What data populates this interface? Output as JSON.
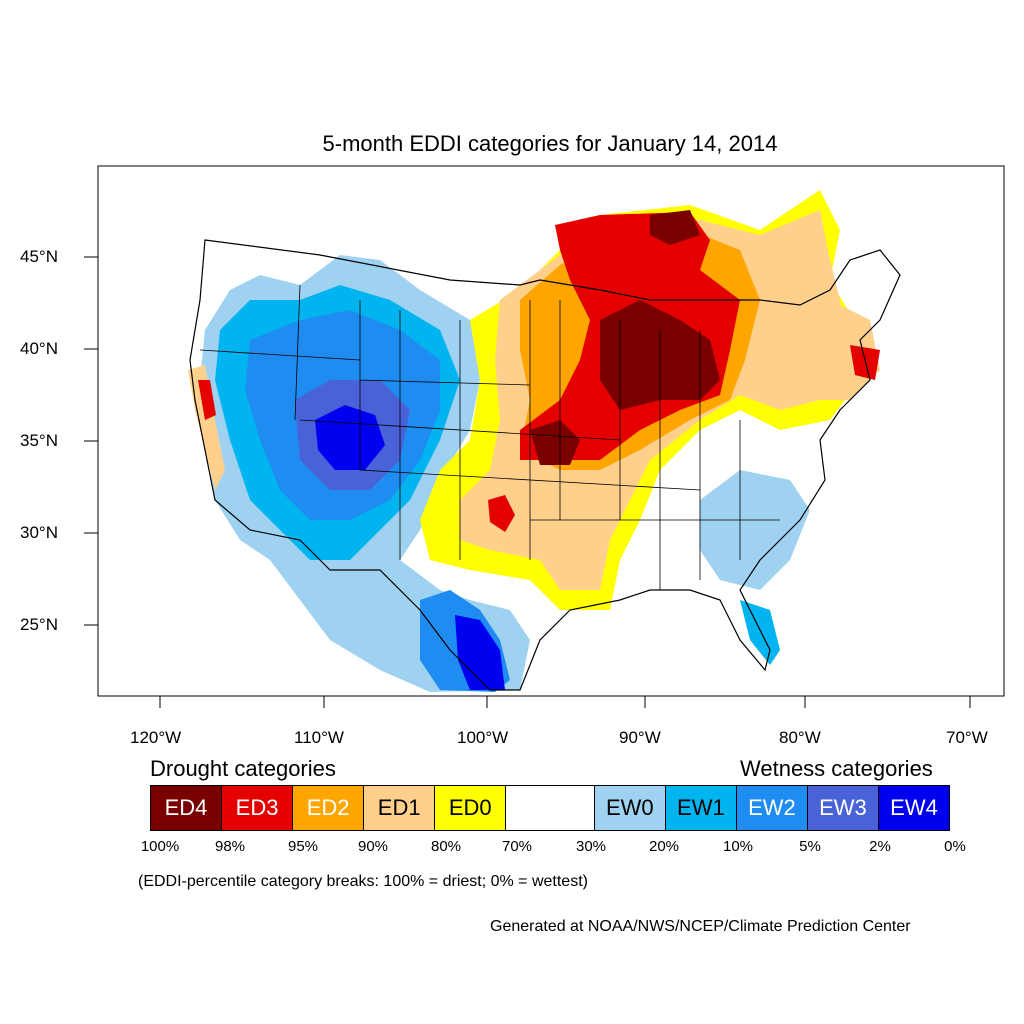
{
  "title": "5-month EDDI categories for January 14, 2014",
  "latitude_labels": [
    "45°N",
    "40°N",
    "35°N",
    "30°N",
    "25°N"
  ],
  "longitude_labels": [
    "120°W",
    "110°W",
    "100°W",
    "90°W",
    "80°W",
    "70°W"
  ],
  "legend": {
    "drought_heading": "Drought categories",
    "wetness_heading": "Wetness categories",
    "categories": [
      {
        "label": "ED4",
        "color": "#7a0000",
        "text_color": "#ffffff"
      },
      {
        "label": "ED3",
        "color": "#e50000",
        "text_color": "#ffffff"
      },
      {
        "label": "ED2",
        "color": "#ffa500",
        "text_color": "#ffffff"
      },
      {
        "label": "ED1",
        "color": "#ffd08c",
        "text_color": "#000000"
      },
      {
        "label": "ED0",
        "color": "#ffff00",
        "text_color": "#000000"
      },
      {
        "label": "",
        "color": "#ffffff",
        "text_color": "#000000"
      },
      {
        "label": "EW0",
        "color": "#9fd2f0",
        "text_color": "#000000"
      },
      {
        "label": "EW1",
        "color": "#00b4f0",
        "text_color": "#000000"
      },
      {
        "label": "EW2",
        "color": "#1e8cf0",
        "text_color": "#ffffff"
      },
      {
        "label": "EW3",
        "color": "#4a62d8",
        "text_color": "#ffffff"
      },
      {
        "label": "EW4",
        "color": "#0000f0",
        "text_color": "#ffffff"
      }
    ],
    "percentiles": [
      "100%",
      "98%",
      "95%",
      "90%",
      "80%",
      "70%",
      "30%",
      "20%",
      "10%",
      "5%",
      "2%",
      "0%"
    ]
  },
  "note": "(EDDI-percentile category breaks: 100% = driest; 0% = wettest)",
  "credit": "Generated at NOAA/NWS/NCEP/Climate Prediction Center"
}
